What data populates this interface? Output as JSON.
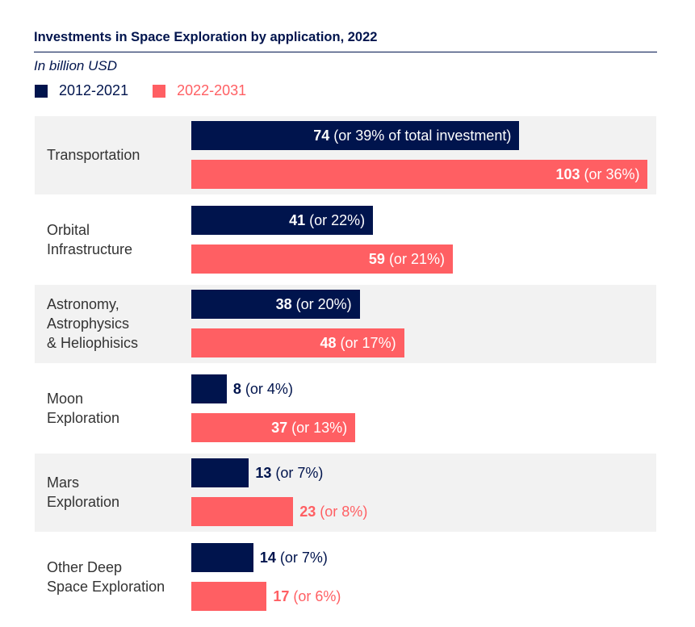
{
  "chart_data": {
    "type": "bar",
    "orientation": "horizontal",
    "title": "Investments in Space Exploration by application, 2022",
    "subtitle": "In billion USD",
    "categories": [
      "Transportation",
      "Orbital Infrastructure",
      "Astronomy, Astrophysics & Heliophisics",
      "Moon Exploration",
      "Mars Exploration",
      "Other Deep Space Exploration"
    ],
    "category_lines": [
      [
        "Transportation"
      ],
      [
        "Orbital",
        "Infrastructure"
      ],
      [
        "Astronomy,",
        "Astrophysics",
        "& Heliophisics"
      ],
      [
        "Moon",
        "Exploration"
      ],
      [
        "Mars",
        "Exploration"
      ],
      [
        "Other Deep",
        "Space Exploration"
      ]
    ],
    "series": [
      {
        "name": "2012-2021",
        "color": "#00144d",
        "values": [
          74,
          41,
          38,
          8,
          13,
          14
        ],
        "labels": [
          "(or 39% of total investment)",
          "(or 22%)",
          "(or 20%)",
          "(or 4%)",
          "(or 7%)",
          "(or 7%)"
        ]
      },
      {
        "name": "2022-2031",
        "color": "#ff5f63",
        "values": [
          103,
          59,
          48,
          37,
          23,
          17
        ],
        "labels": [
          "(or 36%)",
          "(or 21%)",
          "(or 17%)",
          "(or 13%)",
          "(or 8%)",
          "(or 6%)"
        ]
      }
    ],
    "legend_position": "top-left",
    "band_color": "#f2f2f2",
    "grid": false
  }
}
